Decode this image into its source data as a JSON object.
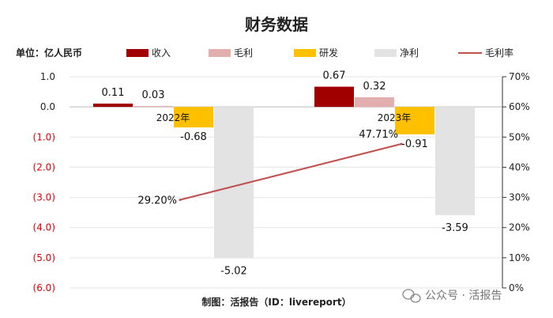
{
  "chart_data": {
    "type": "bar",
    "title": "财务数据",
    "unit_label": "单位：亿人民币",
    "categories": [
      "2022年",
      "2023年"
    ],
    "series": [
      {
        "name": "收入",
        "kind": "bar",
        "color": "#a00000",
        "values": [
          0.11,
          0.67
        ],
        "labels": [
          "0.11",
          "0.67"
        ]
      },
      {
        "name": "毛利",
        "kind": "bar",
        "color": "#e2aeae",
        "values": [
          0.03,
          0.32
        ],
        "labels": [
          "0.03",
          "0.32"
        ]
      },
      {
        "name": "研发",
        "kind": "bar",
        "color": "#ffc000",
        "values": [
          -0.68,
          -0.91
        ],
        "labels": [
          "-0.68",
          "-0.91"
        ]
      },
      {
        "name": "净利",
        "kind": "bar",
        "color": "#e3e3e3",
        "values": [
          -5.02,
          -3.59
        ],
        "labels": [
          "-5.02",
          "-3.59"
        ]
      },
      {
        "name": "毛利率",
        "kind": "line",
        "axis": "right",
        "color": "#c0504d",
        "values": [
          29.2,
          47.71
        ],
        "labels": [
          "29.20%",
          "47.71%"
        ]
      }
    ],
    "y_left": {
      "min": -6,
      "max": 1,
      "ticks": [
        "1.0",
        "0.0",
        "(1.0)",
        "(2.0)",
        "(3.0)",
        "(4.0)",
        "(5.0)",
        "(6.0)"
      ],
      "negative_color": "#e00000"
    },
    "y_right": {
      "min": 0,
      "max": 70,
      "ticks": [
        "70%",
        "60%",
        "50%",
        "40%",
        "30%",
        "20%",
        "10%",
        "0%"
      ]
    },
    "grid": true,
    "legend_position": "top"
  },
  "caption": "制图：活报告（ID：livereport）",
  "watermark": "公众号 · 活报告"
}
